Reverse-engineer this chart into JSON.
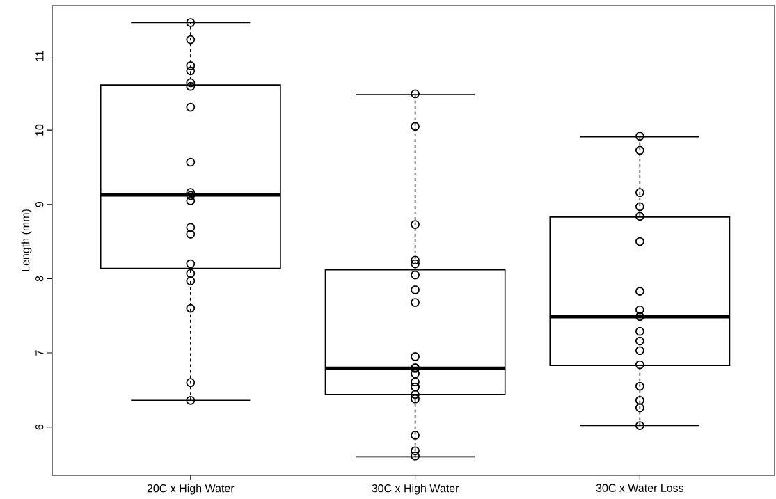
{
  "chart_data": {
    "type": "box",
    "ylabel": "Length (mm)",
    "categories": [
      "20C x High Water",
      "30C x High Water",
      "30C x Water Loss"
    ],
    "boxes": [
      {
        "low": 6.36,
        "q1": 8.14,
        "median": 9.13,
        "q3": 10.61,
        "high": 11.45
      },
      {
        "low": 5.6,
        "q1": 6.44,
        "median": 6.79,
        "q3": 8.12,
        "high": 10.48
      },
      {
        "low": 6.02,
        "q1": 6.83,
        "median": 7.49,
        "q3": 8.83,
        "high": 9.91
      }
    ],
    "ylim": [
      5.35,
      11.68
    ],
    "yticks": [
      6,
      7,
      8,
      9,
      10,
      11
    ],
    "marker": "circle",
    "series": [
      {
        "type": "scatter",
        "color": "#000000",
        "x": [
          "20C x High Water",
          "20C x High Water",
          "20C x High Water",
          "20C x High Water",
          "20C x High Water",
          "20C x High Water",
          "20C x High Water",
          "20C x High Water",
          "20C x High Water",
          "20C x High Water",
          "20C x High Water",
          "20C x High Water",
          "20C x High Water",
          "20C x High Water",
          "20C x High Water",
          "20C x High Water",
          "20C x High Water",
          "20C x High Water",
          "20C x High Water",
          "30C x High Water",
          "30C x High Water",
          "30C x High Water",
          "30C x High Water",
          "30C x High Water",
          "30C x High Water",
          "30C x High Water",
          "30C x High Water",
          "30C x High Water",
          "30C x High Water",
          "30C x High Water",
          "30C x High Water",
          "30C x High Water",
          "30C x High Water",
          "30C x High Water",
          "30C x High Water",
          "30C x High Water",
          "30C x High Water",
          "30C x High Water",
          "30C x High Water",
          "30C x Water Loss",
          "30C x Water Loss",
          "30C x Water Loss",
          "30C x Water Loss",
          "30C x Water Loss",
          "30C x Water Loss",
          "30C x Water Loss",
          "30C x Water Loss",
          "30C x Water Loss",
          "30C x Water Loss",
          "30C x Water Loss",
          "30C x Water Loss",
          "30C x Water Loss",
          "30C x Water Loss",
          "30C x Water Loss",
          "30C x Water Loss",
          "30C x Water Loss"
        ],
        "values": [
          11.45,
          11.22,
          10.8,
          10.87,
          10.59,
          10.64,
          10.31,
          9.57,
          9.12,
          9.16,
          9.05,
          8.69,
          8.6,
          8.2,
          8.07,
          7.97,
          7.6,
          6.6,
          6.36,
          10.49,
          10.05,
          8.73,
          8.2,
          8.25,
          8.05,
          7.85,
          7.68,
          6.95,
          6.79,
          6.8,
          6.72,
          6.61,
          6.54,
          6.54,
          6.44,
          6.38,
          5.89,
          5.68,
          5.61,
          9.92,
          9.73,
          9.16,
          8.97,
          8.84,
          8.5,
          7.83,
          7.58,
          7.49,
          7.29,
          7.16,
          7.03,
          6.84,
          6.55,
          6.36,
          6.26,
          6.02
        ]
      }
    ]
  }
}
